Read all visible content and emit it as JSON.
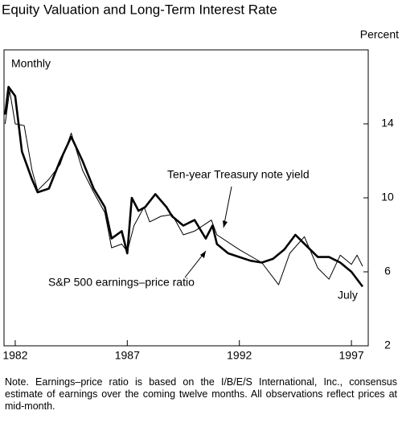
{
  "chart_data": {
    "type": "line",
    "title": "Equity Valuation and Long-Term Interest Rate",
    "y_label": "Percent",
    "subtitle": "Monthly",
    "end_label": "July",
    "note": "Note. Earnings–price ratio is based on the I/B/E/S International, Inc., consensus estimate of earnings over the coming twelve months. All observations reflect prices at mid-month.",
    "xlim": [
      1981.5,
      1997.75
    ],
    "xticks": [
      1982,
      1987,
      1992,
      1997
    ],
    "ylim": [
      2,
      18
    ],
    "yticks": [
      2,
      6,
      10,
      14
    ],
    "series": [
      {
        "name": "Ten-year Treasury note yield",
        "color": "#000000",
        "width": 1,
        "x": [
          1981.55,
          1981.75,
          1982.0,
          1982.4,
          1982.75,
          1983.0,
          1983.5,
          1984.0,
          1984.5,
          1985.0,
          1985.5,
          1986.0,
          1986.3,
          1986.75,
          1987.0,
          1987.3,
          1987.75,
          1988.0,
          1988.5,
          1989.0,
          1989.5,
          1990.0,
          1990.75,
          1991.0,
          1992.0,
          1993.0,
          1993.75,
          1994.25,
          1994.9,
          1995.5,
          1996.0,
          1996.5,
          1997.0,
          1997.25,
          1997.5
        ],
        "values": [
          14,
          15.8,
          14,
          13.9,
          11.5,
          10.4,
          11,
          11.8,
          13.5,
          11.5,
          10.3,
          9.2,
          7.3,
          7.5,
          7.1,
          8.5,
          9.5,
          8.7,
          9,
          9.1,
          8,
          8.2,
          8.8,
          8,
          7.2,
          6.5,
          5.3,
          7,
          7.9,
          6.2,
          5.6,
          6.9,
          6.4,
          6.9,
          6.3
        ]
      },
      {
        "name": "S&P 500 earnings–price ratio",
        "color": "#000000",
        "width": 2.6,
        "x": [
          1981.55,
          1981.7,
          1982.0,
          1982.3,
          1982.75,
          1983.0,
          1983.5,
          1984.0,
          1984.5,
          1985.0,
          1985.5,
          1986.0,
          1986.3,
          1986.75,
          1987.0,
          1987.2,
          1987.5,
          1987.8,
          1988.25,
          1988.75,
          1989.0,
          1989.5,
          1990.0,
          1990.5,
          1990.8,
          1991.0,
          1991.5,
          1992.0,
          1992.5,
          1993.0,
          1993.5,
          1994.0,
          1994.5,
          1995.0,
          1995.5,
          1996.0,
          1996.5,
          1997.0,
          1997.5
        ],
        "values": [
          14.5,
          16,
          15.5,
          12.5,
          11,
          10.3,
          10.5,
          12,
          13.3,
          12,
          10.5,
          9.5,
          7.8,
          8.2,
          7,
          10,
          9.3,
          9.5,
          10.2,
          9.5,
          9,
          8.5,
          8.8,
          7.8,
          8.5,
          7.5,
          7,
          6.8,
          6.6,
          6.5,
          6.7,
          7.2,
          8,
          7.4,
          6.8,
          6.8,
          6.5,
          6,
          5.2
        ]
      }
    ]
  }
}
